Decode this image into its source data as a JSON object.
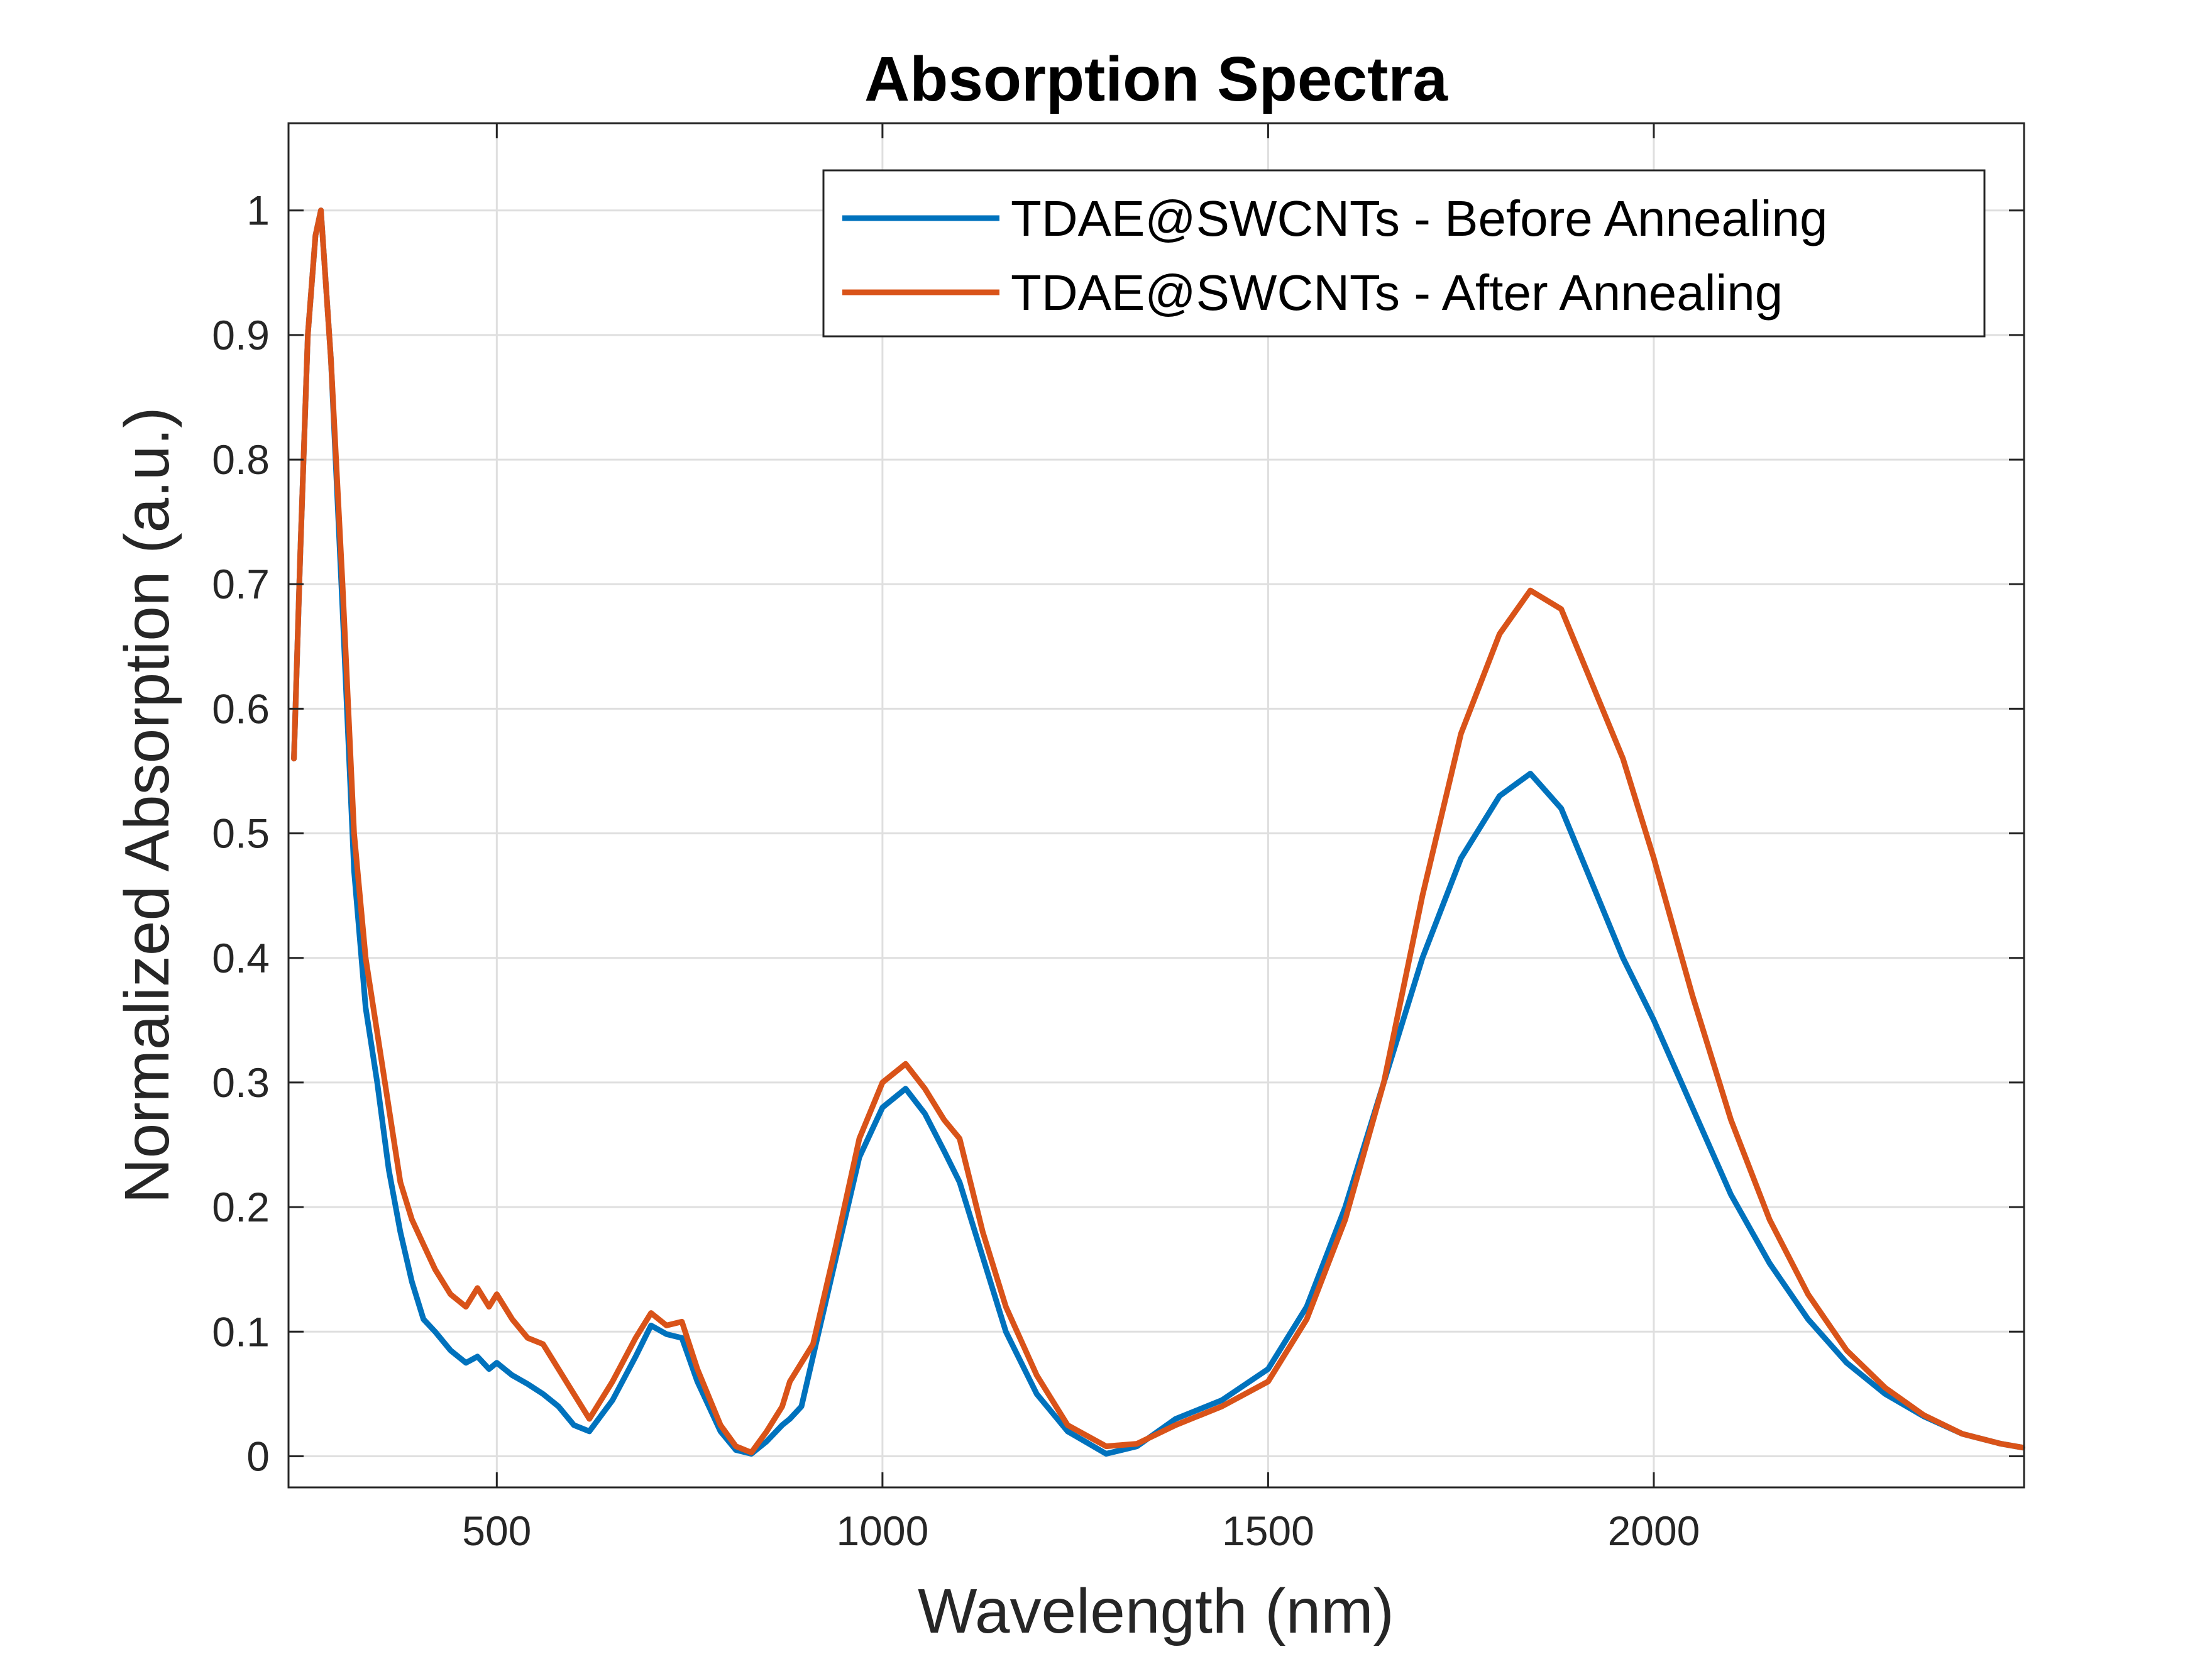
{
  "chart_data": {
    "type": "line",
    "title": "Absorption Spectra",
    "xlabel": "Wavelength (nm)",
    "ylabel": "Normalized Absorption (a.u.)",
    "xlim": [
      230,
      2480
    ],
    "ylim": [
      -0.025,
      1.07
    ],
    "xticks": [
      500,
      1000,
      1500,
      2000
    ],
    "yticks": [
      0,
      0.1,
      0.2,
      0.3,
      0.4,
      0.5,
      0.6,
      0.7,
      0.8,
      0.9,
      1
    ],
    "xtick_labels": [
      "500",
      "1000",
      "1500",
      "2000"
    ],
    "ytick_labels": [
      "0",
      "0.1",
      "0.2",
      "0.3",
      "0.4",
      "0.5",
      "0.6",
      "0.7",
      "0.8",
      "0.9",
      "1"
    ],
    "grid": true,
    "legend_position": "top-right",
    "series": [
      {
        "name": "TDAE@SWCNTs - Before Annealing",
        "color": "#0072BD",
        "x": [
          237,
          245,
          255,
          265,
          272,
          285,
          300,
          315,
          330,
          345,
          360,
          375,
          390,
          405,
          420,
          440,
          460,
          475,
          490,
          500,
          520,
          540,
          560,
          580,
          600,
          620,
          650,
          680,
          700,
          720,
          740,
          760,
          790,
          810,
          830,
          850,
          870,
          880,
          895,
          910,
          940,
          970,
          1000,
          1030,
          1055,
          1080,
          1100,
          1130,
          1160,
          1200,
          1240,
          1290,
          1330,
          1380,
          1440,
          1500,
          1550,
          1600,
          1650,
          1700,
          1750,
          1800,
          1840,
          1880,
          1920,
          1960,
          2000,
          2050,
          2100,
          2150,
          2200,
          2250,
          2300,
          2350,
          2400,
          2450,
          2478
        ],
        "y": [
          0.56,
          0.72,
          0.9,
          0.98,
          1.0,
          0.88,
          0.68,
          0.47,
          0.36,
          0.3,
          0.23,
          0.18,
          0.14,
          0.11,
          0.1,
          0.085,
          0.075,
          0.08,
          0.07,
          0.075,
          0.065,
          0.058,
          0.05,
          0.04,
          0.025,
          0.02,
          0.045,
          0.08,
          0.105,
          0.098,
          0.095,
          0.06,
          0.02,
          0.005,
          0.002,
          0.012,
          0.025,
          0.03,
          0.04,
          0.08,
          0.16,
          0.24,
          0.28,
          0.295,
          0.275,
          0.245,
          0.22,
          0.16,
          0.1,
          0.05,
          0.02,
          0.002,
          0.008,
          0.03,
          0.045,
          0.07,
          0.12,
          0.2,
          0.3,
          0.4,
          0.48,
          0.53,
          0.548,
          0.52,
          0.46,
          0.4,
          0.35,
          0.28,
          0.21,
          0.155,
          0.11,
          0.075,
          0.05,
          0.032,
          0.018,
          0.01,
          0.007
        ]
      },
      {
        "name": "TDAE@SWCNTs - After Annealing",
        "color": "#D95319",
        "x": [
          237,
          245,
          255,
          265,
          272,
          285,
          300,
          315,
          330,
          345,
          360,
          375,
          390,
          405,
          420,
          440,
          460,
          475,
          490,
          500,
          520,
          540,
          560,
          580,
          600,
          620,
          650,
          680,
          700,
          720,
          740,
          760,
          790,
          810,
          830,
          850,
          870,
          880,
          895,
          910,
          940,
          970,
          1000,
          1030,
          1055,
          1080,
          1100,
          1130,
          1160,
          1200,
          1240,
          1290,
          1330,
          1380,
          1440,
          1500,
          1550,
          1600,
          1650,
          1700,
          1750,
          1800,
          1840,
          1880,
          1920,
          1960,
          2000,
          2050,
          2100,
          2150,
          2200,
          2250,
          2300,
          2350,
          2400,
          2450,
          2478
        ],
        "y": [
          0.56,
          0.72,
          0.9,
          0.98,
          1.0,
          0.88,
          0.7,
          0.5,
          0.4,
          0.34,
          0.28,
          0.22,
          0.19,
          0.17,
          0.15,
          0.13,
          0.12,
          0.135,
          0.12,
          0.13,
          0.11,
          0.095,
          0.09,
          0.07,
          0.05,
          0.03,
          0.06,
          0.095,
          0.115,
          0.105,
          0.108,
          0.07,
          0.025,
          0.008,
          0.003,
          0.02,
          0.04,
          0.06,
          0.075,
          0.09,
          0.17,
          0.255,
          0.3,
          0.315,
          0.295,
          0.27,
          0.255,
          0.18,
          0.12,
          0.065,
          0.025,
          0.008,
          0.01,
          0.025,
          0.04,
          0.06,
          0.11,
          0.19,
          0.3,
          0.45,
          0.58,
          0.66,
          0.695,
          0.68,
          0.62,
          0.56,
          0.48,
          0.37,
          0.27,
          0.19,
          0.13,
          0.085,
          0.055,
          0.033,
          0.018,
          0.01,
          0.007
        ]
      }
    ]
  }
}
